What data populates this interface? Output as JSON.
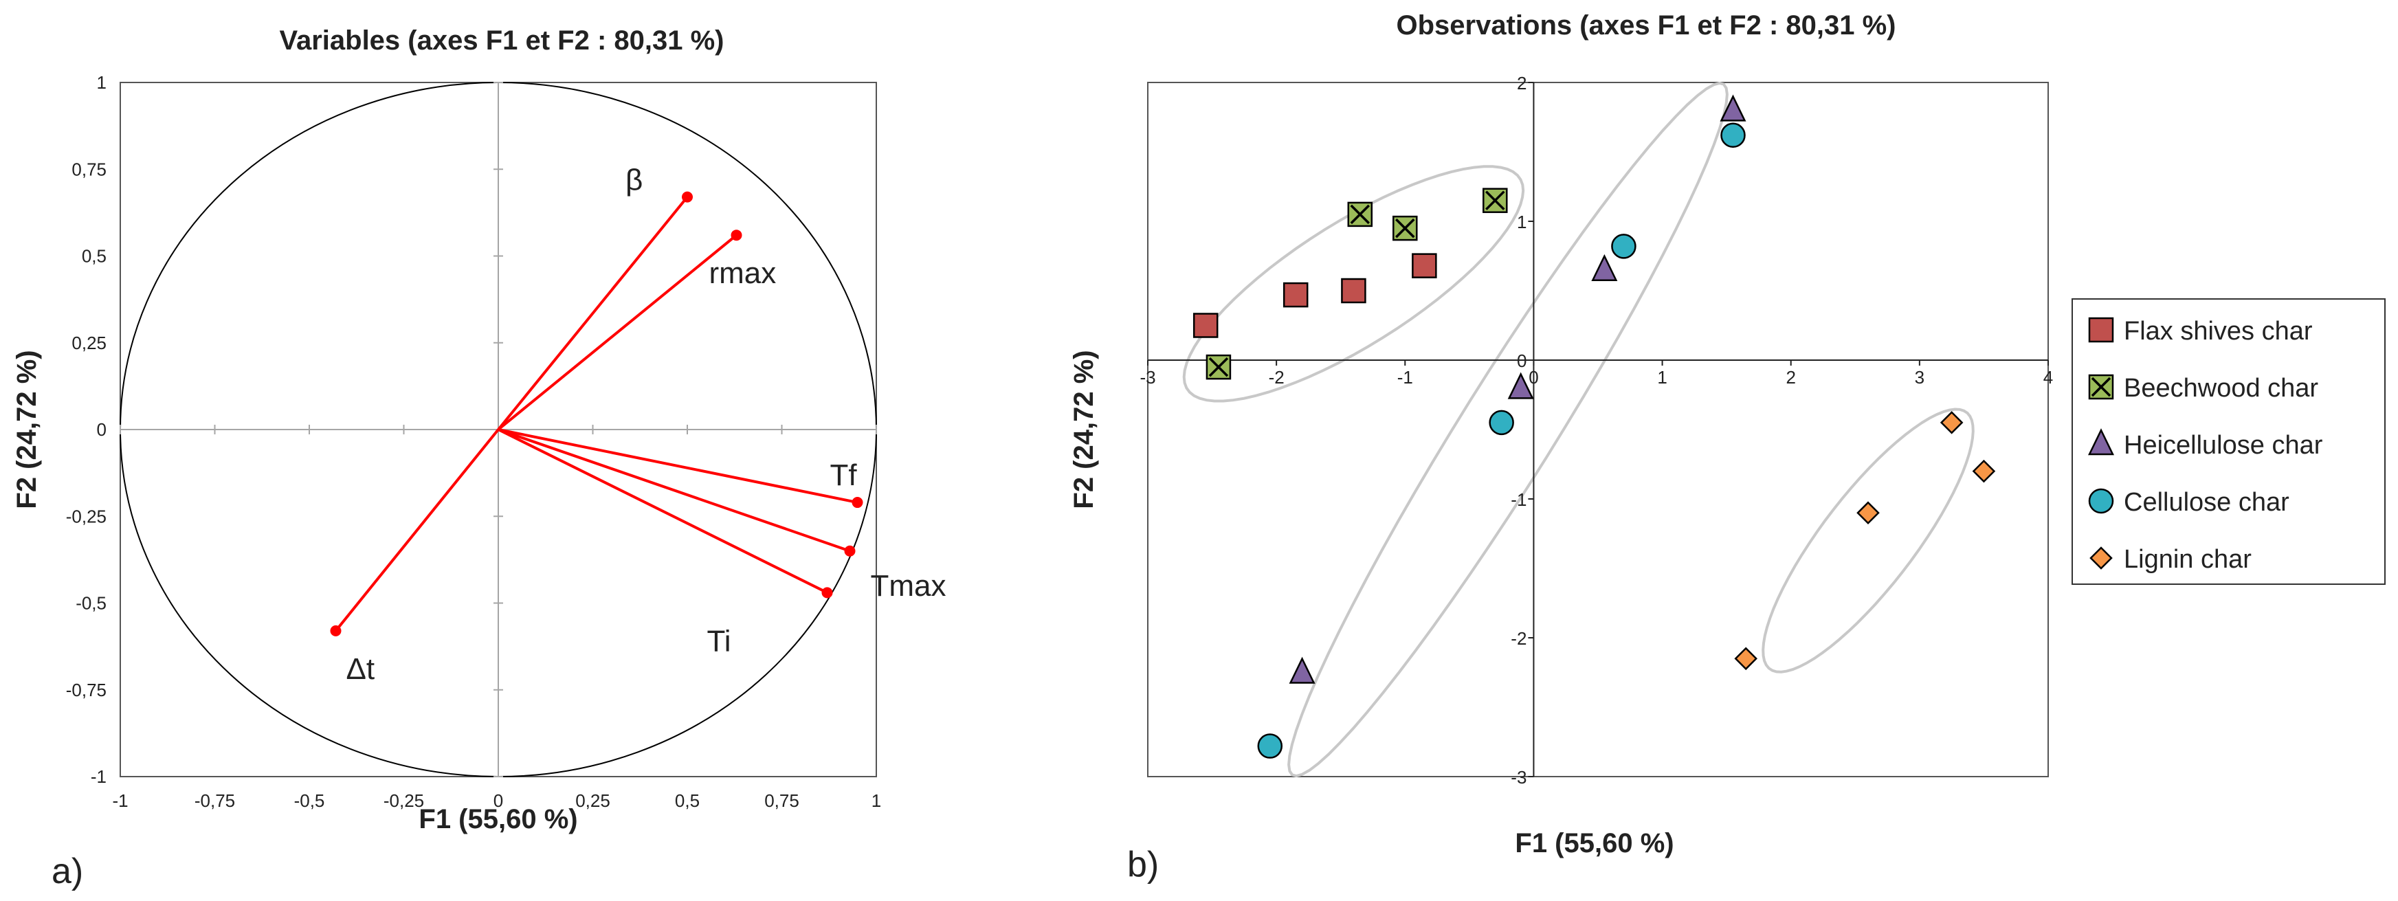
{
  "panel_labels": {
    "a": "a)",
    "b": "b)"
  },
  "chart_data": [
    {
      "type": "scatter",
      "subtype": "correlation-circle",
      "title": "Variables (axes F1 et F2 : 80,31 %)",
      "xlabel": "F1 (55,60 %)",
      "ylabel": "F2 (24,72 %)",
      "xlim": [
        -1,
        1
      ],
      "ylim": [
        -1,
        1
      ],
      "xticks": [
        "-1",
        "-0,75",
        "-0,5",
        "-0,25",
        "0",
        "0,25",
        "0,5",
        "0,75",
        "1"
      ],
      "yticks": [
        "1",
        "0,75",
        "0,5",
        "0,25",
        "0",
        "-0,25",
        "-0,5",
        "-0,75",
        "-1"
      ],
      "vector_color": "#ff0000",
      "circle_color": "#000000",
      "variables": [
        {
          "name": "β",
          "x": 0.5,
          "y": 0.67
        },
        {
          "name": "rmax",
          "x": 0.63,
          "y": 0.56
        },
        {
          "name": "Tf",
          "x": 0.95,
          "y": -0.21
        },
        {
          "name": "Tmax",
          "x": 0.93,
          "y": -0.35
        },
        {
          "name": "Ti",
          "x": 0.87,
          "y": -0.47
        },
        {
          "name": "Δt",
          "x": -0.43,
          "y": -0.58
        }
      ]
    },
    {
      "type": "scatter",
      "title": "Observations (axes F1 et F2 : 80,31 %)",
      "xlabel": "F1 (55,60 %)",
      "ylabel": "F2 (24,72 %)",
      "xlim": [
        -3,
        4
      ],
      "ylim": [
        -3,
        2
      ],
      "xticks": [
        "-3",
        "-2",
        "-1",
        "0",
        "1",
        "2",
        "3",
        "4"
      ],
      "yticks": [
        "2",
        "1",
        "0",
        "-1",
        "-2",
        "-3"
      ],
      "legend_position": "right",
      "ellipse_color": "#c8c8c8",
      "series": [
        {
          "name": "Flax shives char",
          "marker": "square",
          "color": "#c0504d",
          "points": [
            [
              -2.55,
              0.25
            ],
            [
              -1.85,
              0.47
            ],
            [
              -1.4,
              0.5
            ],
            [
              -0.85,
              0.68
            ]
          ]
        },
        {
          "name": "Beechwood char",
          "marker": "x-square",
          "color": "#9bbb59",
          "points": [
            [
              -2.45,
              -0.05
            ],
            [
              -1.35,
              1.05
            ],
            [
              -1.0,
              0.95
            ],
            [
              -0.3,
              1.15
            ]
          ]
        },
        {
          "name": "Heicellulose char",
          "marker": "triangle",
          "color": "#8064a2",
          "points": [
            [
              1.55,
              1.8
            ],
            [
              0.55,
              0.65
            ],
            [
              -0.1,
              -0.2
            ],
            [
              -1.8,
              -2.25
            ]
          ]
        },
        {
          "name": "Cellulose char",
          "marker": "circle",
          "color": "#31b0c2",
          "points": [
            [
              1.55,
              1.62
            ],
            [
              0.7,
              0.82
            ],
            [
              -0.25,
              -0.45
            ],
            [
              -2.05,
              -2.78
            ]
          ]
        },
        {
          "name": "Lignin char",
          "marker": "diamond",
          "color": "#f79646",
          "points": [
            [
              3.25,
              -0.45
            ],
            [
              3.5,
              -0.8
            ],
            [
              2.6,
              -1.1
            ],
            [
              1.65,
              -2.15
            ]
          ]
        }
      ]
    }
  ]
}
